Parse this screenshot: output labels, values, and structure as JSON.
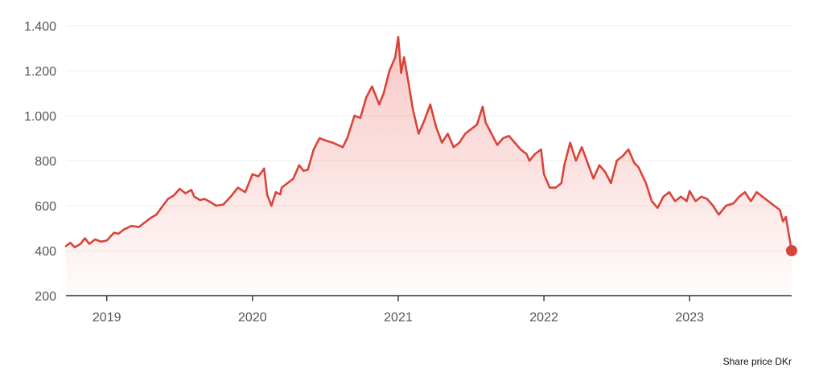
{
  "chart_data": {
    "type": "area",
    "caption": "Share price DKr",
    "ylim": [
      200,
      1400
    ],
    "yticks": [
      200,
      400,
      600,
      800,
      1000,
      1200,
      1400
    ],
    "ytick_labels": [
      "200",
      "400",
      "600",
      "800",
      "1.000",
      "1.200",
      "1.400"
    ],
    "xlim": [
      2018.72,
      2023.7
    ],
    "xticks": [
      2019,
      2020,
      2021,
      2022,
      2023
    ],
    "xtick_labels": [
      "2019",
      "2020",
      "2021",
      "2022",
      "2023"
    ],
    "grid": true,
    "line_color": "#d9443a",
    "series": [
      {
        "x": [
          2018.72,
          2018.75,
          2018.78,
          2018.82,
          2018.85,
          2018.88,
          2018.92,
          2018.96,
          2019.0,
          2019.05,
          2019.08,
          2019.12,
          2019.17,
          2019.22,
          2019.25,
          2019.3,
          2019.34,
          2019.38,
          2019.42,
          2019.46,
          2019.5,
          2019.54,
          2019.58,
          2019.6,
          2019.64,
          2019.67,
          2019.7,
          2019.75,
          2019.8,
          2019.85,
          2019.9,
          2019.95,
          2020.0,
          2020.04,
          2020.08,
          2020.1,
          2020.13,
          2020.16,
          2020.19,
          2020.2,
          2020.24,
          2020.28,
          2020.32,
          2020.35,
          2020.38,
          2020.42,
          2020.46,
          2020.5,
          2020.55,
          2020.62,
          2020.65,
          2020.7,
          2020.74,
          2020.78,
          2020.82,
          2020.87,
          2020.9,
          2020.94,
          2020.98,
          2021.0,
          2021.02,
          2021.04,
          2021.07,
          2021.1,
          2021.14,
          2021.18,
          2021.22,
          2021.26,
          2021.3,
          2021.34,
          2021.38,
          2021.42,
          2021.46,
          2021.5,
          2021.54,
          2021.58,
          2021.6,
          2021.64,
          2021.68,
          2021.72,
          2021.76,
          2021.8,
          2021.84,
          2021.88,
          2021.9,
          2021.94,
          2021.98,
          2022.0,
          2022.04,
          2022.08,
          2022.12,
          2022.14,
          2022.18,
          2022.22,
          2022.26,
          2022.3,
          2022.34,
          2022.38,
          2022.42,
          2022.46,
          2022.5,
          2022.54,
          2022.58,
          2022.62,
          2022.65,
          2022.7,
          2022.74,
          2022.78,
          2022.82,
          2022.86,
          2022.9,
          2022.94,
          2022.98,
          2023.0,
          2023.04,
          2023.08,
          2023.12,
          2023.16,
          2023.2,
          2023.25,
          2023.3,
          2023.34,
          2023.38,
          2023.42,
          2023.46,
          2023.5,
          2023.54,
          2023.58,
          2023.62,
          2023.64,
          2023.66,
          2023.7
        ],
        "y": [
          420,
          435,
          415,
          430,
          455,
          430,
          450,
          440,
          445,
          480,
          475,
          495,
          510,
          505,
          520,
          545,
          560,
          595,
          630,
          645,
          675,
          655,
          670,
          640,
          625,
          630,
          620,
          600,
          605,
          640,
          680,
          660,
          740,
          730,
          765,
          650,
          600,
          660,
          650,
          680,
          700,
          720,
          780,
          755,
          760,
          850,
          900,
          890,
          880,
          860,
          900,
          1000,
          990,
          1080,
          1130,
          1050,
          1100,
          1200,
          1260,
          1350,
          1190,
          1260,
          1150,
          1030,
          920,
          980,
          1050,
          950,
          880,
          920,
          860,
          880,
          920,
          940,
          960,
          1040,
          970,
          920,
          870,
          900,
          910,
          880,
          850,
          830,
          800,
          830,
          850,
          740,
          680,
          680,
          700,
          780,
          880,
          800,
          860,
          790,
          720,
          780,
          750,
          700,
          800,
          820,
          850,
          790,
          770,
          700,
          620,
          590,
          640,
          660,
          620,
          640,
          620,
          665,
          620,
          640,
          630,
          600,
          560,
          600,
          610,
          640,
          660,
          620,
          660,
          640,
          620,
          600,
          580,
          530,
          550,
          400
        ]
      }
    ]
  }
}
